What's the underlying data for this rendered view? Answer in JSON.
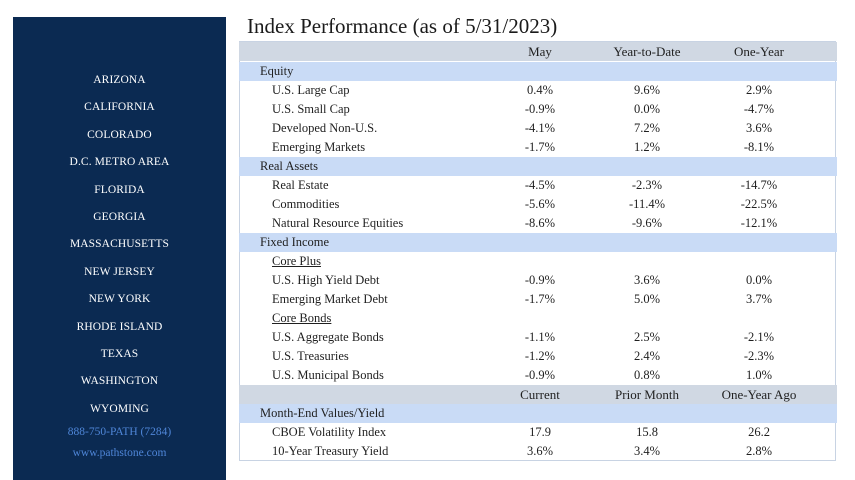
{
  "sidebar": {
    "states": [
      "ARIZONA",
      "CALIFORNIA",
      "COLORADO",
      "D.C. METRO AREA",
      "FLORIDA",
      "GEORGIA",
      "MASSACHUSETTS",
      "NEW JERSEY",
      "NEW YORK",
      "RHODE ISLAND",
      "TEXAS",
      "WASHINGTON",
      "WYOMING"
    ],
    "phone": "888-750-PATH (7284)",
    "website": "www.pathstone.com"
  },
  "title": "Index Performance (as of 5/31/2023)",
  "table": {
    "header1": [
      "May",
      "Year-to-Date",
      "One-Year"
    ],
    "equity": {
      "label": "Equity",
      "rows": [
        {
          "name": "U.S. Large Cap",
          "v": [
            "0.4%",
            "9.6%",
            "2.9%"
          ]
        },
        {
          "name": "U.S. Small Cap",
          "v": [
            "-0.9%",
            "0.0%",
            "-4.7%"
          ]
        },
        {
          "name": "Developed Non-U.S.",
          "v": [
            "-4.1%",
            "7.2%",
            "3.6%"
          ]
        },
        {
          "name": "Emerging Markets",
          "v": [
            "-1.7%",
            "1.2%",
            "-8.1%"
          ]
        }
      ]
    },
    "real_assets": {
      "label": "Real Assets",
      "rows": [
        {
          "name": "Real Estate",
          "v": [
            "-4.5%",
            "-2.3%",
            "-14.7%"
          ]
        },
        {
          "name": "Commodities",
          "v": [
            "-5.6%",
            "-11.4%",
            "-22.5%"
          ]
        },
        {
          "name": "Natural Resource Equities",
          "v": [
            "-8.6%",
            "-9.6%",
            "-12.1%"
          ]
        }
      ]
    },
    "fixed_income": {
      "label": "Fixed Income",
      "core_plus": {
        "label": "Core Plus",
        "rows": [
          {
            "name": "U.S. High Yield Debt",
            "v": [
              "-0.9%",
              "3.6%",
              "0.0%"
            ]
          },
          {
            "name": "Emerging Market Debt",
            "v": [
              "-1.7%",
              "5.0%",
              "3.7%"
            ]
          }
        ]
      },
      "core_bonds": {
        "label": "Core Bonds",
        "rows": [
          {
            "name": "U.S. Aggregate Bonds",
            "v": [
              "-1.1%",
              "2.5%",
              "-2.1%"
            ]
          },
          {
            "name": "U.S. Treasuries",
            "v": [
              "-1.2%",
              "2.4%",
              "-2.3%"
            ]
          },
          {
            "name": "U.S. Municipal Bonds",
            "v": [
              "-0.9%",
              "0.8%",
              "1.0%"
            ]
          }
        ]
      }
    },
    "header2": [
      "Current",
      "Prior Month",
      "One-Year Ago"
    ],
    "month_end": {
      "label": "Month-End Values/Yield",
      "rows": [
        {
          "name": "CBOE Volatility Index",
          "v": [
            "17.9",
            "15.8",
            "26.2"
          ]
        },
        {
          "name": "10-Year Treasury Yield",
          "v": [
            "3.6%",
            "3.4%",
            "2.8%"
          ]
        }
      ]
    }
  }
}
